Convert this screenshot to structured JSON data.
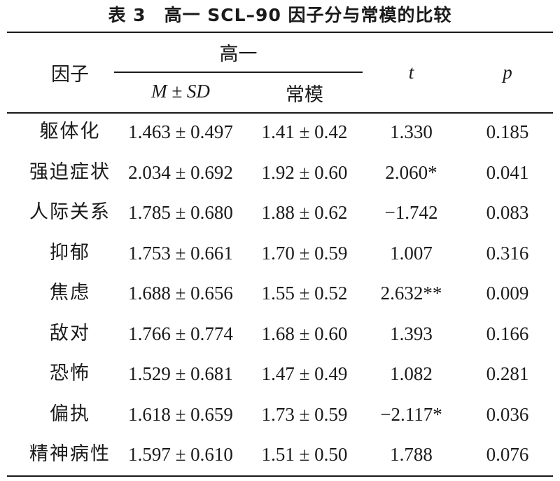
{
  "caption": {
    "number": "表 3",
    "title": "高一 SCL–90 因子分与常模的比较"
  },
  "header": {
    "factor": "因子",
    "group": "高一",
    "msd": "M ± SD",
    "norm": "常模",
    "t": "t",
    "p": "p"
  },
  "rows": [
    {
      "factor": "躯体化",
      "msd": "1.463 ± 0.497",
      "norm": "1.41 ± 0.42",
      "t": "1.330",
      "p": "0.185"
    },
    {
      "factor": "强迫症状",
      "msd": "2.034 ± 0.692",
      "norm": "1.92 ± 0.60",
      "t": "2.060*",
      "p": "0.041"
    },
    {
      "factor": "人际关系",
      "msd": "1.785 ± 0.680",
      "norm": "1.88 ± 0.62",
      "t": "−1.742",
      "p": "0.083"
    },
    {
      "factor": "抑郁",
      "msd": "1.753 ± 0.661",
      "norm": "1.70 ± 0.59",
      "t": "1.007",
      "p": "0.316"
    },
    {
      "factor": "焦虑",
      "msd": "1.688 ± 0.656",
      "norm": "1.55 ± 0.52",
      "t": "2.632**",
      "p": "0.009"
    },
    {
      "factor": "敌对",
      "msd": "1.766 ± 0.774",
      "norm": "1.68 ± 0.60",
      "t": "1.393",
      "p": "0.166"
    },
    {
      "factor": "恐怖",
      "msd": "1.529 ± 0.681",
      "norm": "1.47 ± 0.49",
      "t": "1.082",
      "p": "0.281"
    },
    {
      "factor": "偏执",
      "msd": "1.618 ± 0.659",
      "norm": "1.73 ± 0.59",
      "t": "−2.117*",
      "p": "0.036"
    },
    {
      "factor": "精神病性",
      "msd": "1.597 ± 0.610",
      "norm": "1.51 ± 0.50",
      "t": "1.788",
      "p": "0.076"
    }
  ]
}
